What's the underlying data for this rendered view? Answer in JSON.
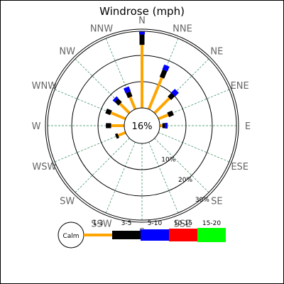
{
  "chart_data": {
    "type": "windrose",
    "title": "Windrose (mph)",
    "directions": [
      "N",
      "NNE",
      "NE",
      "ENE",
      "E",
      "ESE",
      "SE",
      "SSE",
      "S",
      "SSW",
      "SW",
      "WSW",
      "W",
      "WNW",
      "NW",
      "NNW"
    ],
    "rings": [
      {
        "value": 10,
        "label": "10%"
      },
      {
        "value": 20,
        "label": "20%"
      },
      {
        "value": 30,
        "label": "30%"
      }
    ],
    "calm": {
      "value": 16,
      "label": "16%",
      "legend_label": "Calm"
    },
    "speed_bins": [
      {
        "label": "1-3",
        "color": "#FFA500"
      },
      {
        "label": "3-5",
        "color": "#000000"
      },
      {
        "label": "5-10",
        "color": "#0000FF"
      },
      {
        "label": "10-15",
        "color": "#FF0000"
      },
      {
        "label": "15-20",
        "color": "#00FF00"
      }
    ],
    "series": [
      {
        "direction": "N",
        "values": [
          24,
          4,
          1
        ]
      },
      {
        "direction": "NNE",
        "values": [
          13,
          3,
          2
        ]
      },
      {
        "direction": "NE",
        "values": [
          8,
          2,
          2
        ]
      },
      {
        "direction": "ENE",
        "values": [
          4,
          2,
          0
        ]
      },
      {
        "direction": "E",
        "values": [
          1,
          1,
          1
        ]
      },
      {
        "direction": "ESE",
        "values": [
          0,
          0,
          0
        ]
      },
      {
        "direction": "SE",
        "values": [
          0,
          0,
          0
        ]
      },
      {
        "direction": "SSE",
        "values": [
          0,
          0,
          0
        ]
      },
      {
        "direction": "S",
        "values": [
          0,
          0,
          0
        ]
      },
      {
        "direction": "SSW",
        "values": [
          0,
          0,
          0
        ]
      },
      {
        "direction": "SW",
        "values": [
          0,
          0,
          0
        ]
      },
      {
        "direction": "WSW",
        "values": [
          3,
          1,
          0
        ]
      },
      {
        "direction": "W",
        "values": [
          5,
          2,
          0
        ]
      },
      {
        "direction": "WNW",
        "values": [
          6,
          2,
          0
        ]
      },
      {
        "direction": "NW",
        "values": [
          5,
          2,
          1
        ]
      },
      {
        "direction": "NNW",
        "values": [
          5,
          2,
          2
        ]
      }
    ]
  }
}
